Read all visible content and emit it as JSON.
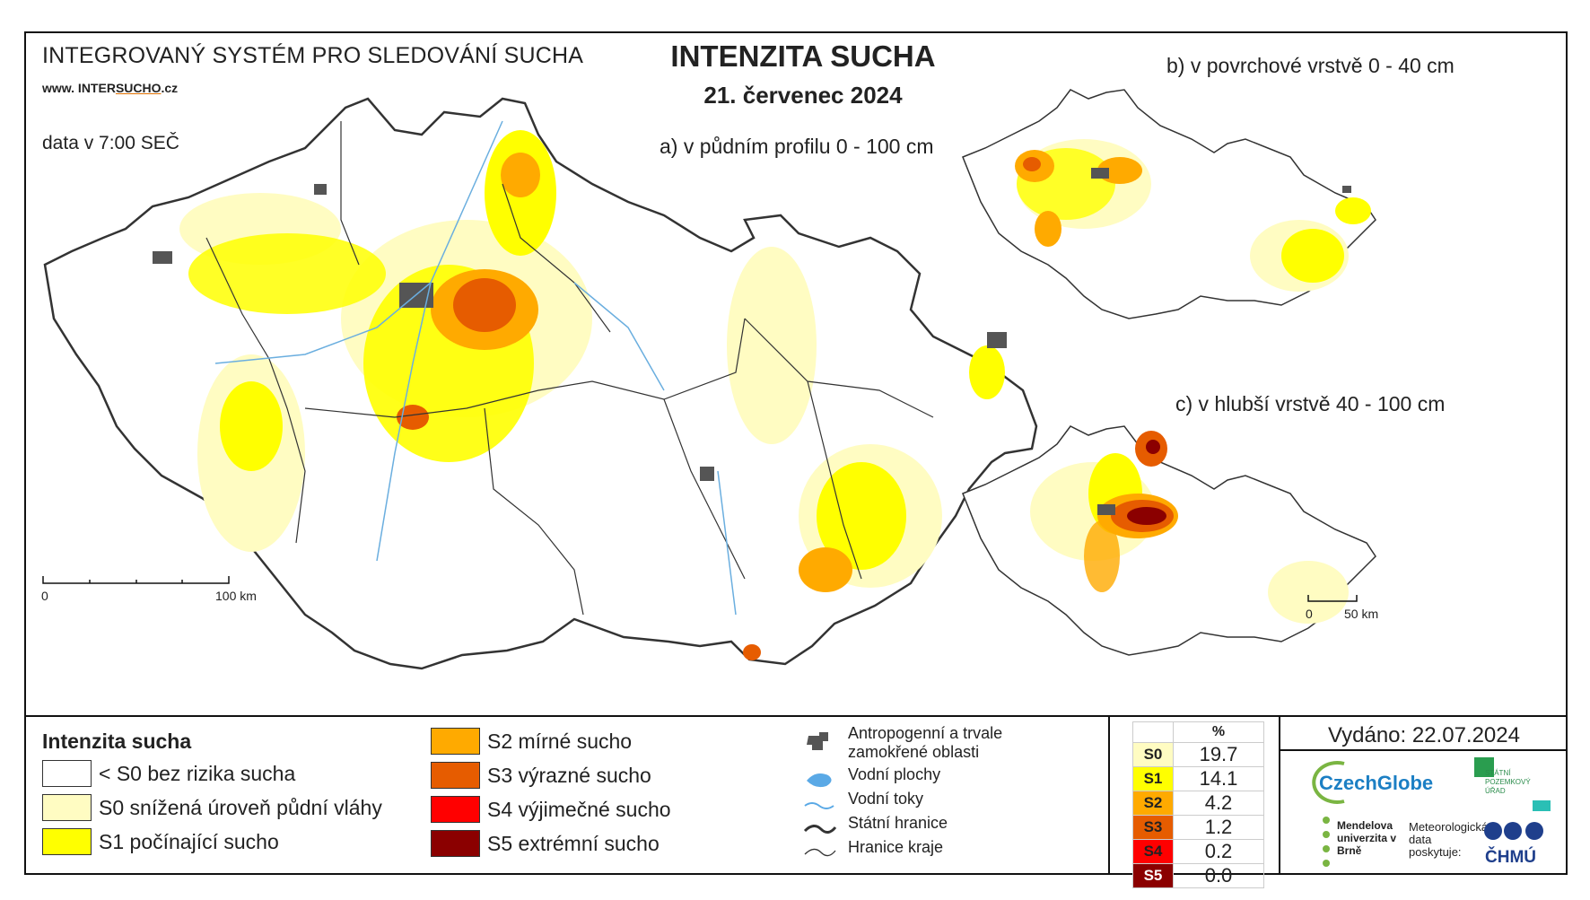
{
  "header": {
    "system_title": "INTEGROVANÝ SYSTÉM PRO SLEDOVÁNÍ SUCHA",
    "website_prefix": "www. INTER",
    "website_mid": "SUCHO",
    "website_suffix": ".cz",
    "data_time": "data v 7:00 SEČ",
    "main_title": "INTENZITA SUCHA",
    "main_date": "21. červenec 2024"
  },
  "maps": {
    "a_label": "a) v půdním profilu 0 - 100 cm",
    "b_label": "b) v povrchové vrstvě 0 - 40 cm",
    "c_label": "c) v hlubší vrstvě 40 - 100 cm",
    "scale_main": {
      "start": "0",
      "end": "100 km"
    },
    "scale_small": {
      "start": "0",
      "end": "50 km"
    }
  },
  "legend": {
    "title": "Intenzita sucha",
    "classes": [
      {
        "label": "< S0 bez rizika sucha",
        "color": "#ffffff"
      },
      {
        "label": "S0 snížená úroveň půdní vláhy",
        "color": "#fffcc2"
      },
      {
        "label": "S1 počínající sucho",
        "color": "#ffff00"
      },
      {
        "label": "S2 mírné sucho",
        "color": "#ffaa00"
      },
      {
        "label": "S3 výrazné sucho",
        "color": "#e65c00"
      },
      {
        "label": "S4 výjimečné sucho",
        "color": "#ff0000"
      },
      {
        "label": "S5 extrémní sucho",
        "color": "#8b0000"
      }
    ],
    "symbols": [
      {
        "icon": "anthropogenic-area-icon",
        "label": "Antropogenní a trvale zamokřené oblasti"
      },
      {
        "icon": "water-body-icon",
        "label": "Vodní plochy"
      },
      {
        "icon": "water-stream-icon",
        "label": "Vodní toky"
      },
      {
        "icon": "state-border-icon",
        "label": "Státní hranice"
      },
      {
        "icon": "region-border-icon",
        "label": "Hranice kraje"
      }
    ]
  },
  "stats": {
    "header": "%",
    "rows": [
      {
        "code": "S0",
        "value": "19.7",
        "color": "#fffcc2"
      },
      {
        "code": "S1",
        "value": "14.1",
        "color": "#ffff00"
      },
      {
        "code": "S2",
        "value": "4.2",
        "color": "#ffaa00"
      },
      {
        "code": "S3",
        "value": "1.2",
        "color": "#e65c00"
      },
      {
        "code": "S4",
        "value": "0.2",
        "color": "#ff0000"
      },
      {
        "code": "S5",
        "value": "0.0",
        "color": "#8b0000"
      }
    ]
  },
  "footer": {
    "issued": "Vydáno: 22.07.2024",
    "logo_czechglobe": "CzechGlobe",
    "logo_spu": "STÁTNÍ POZEMKOVÝ ÚŘAD",
    "logo_mendelu": "Mendelova univerzita v Brně",
    "met_data": "Meteorologická data poskytuje:",
    "logo_chmu": "ČHMÚ"
  }
}
